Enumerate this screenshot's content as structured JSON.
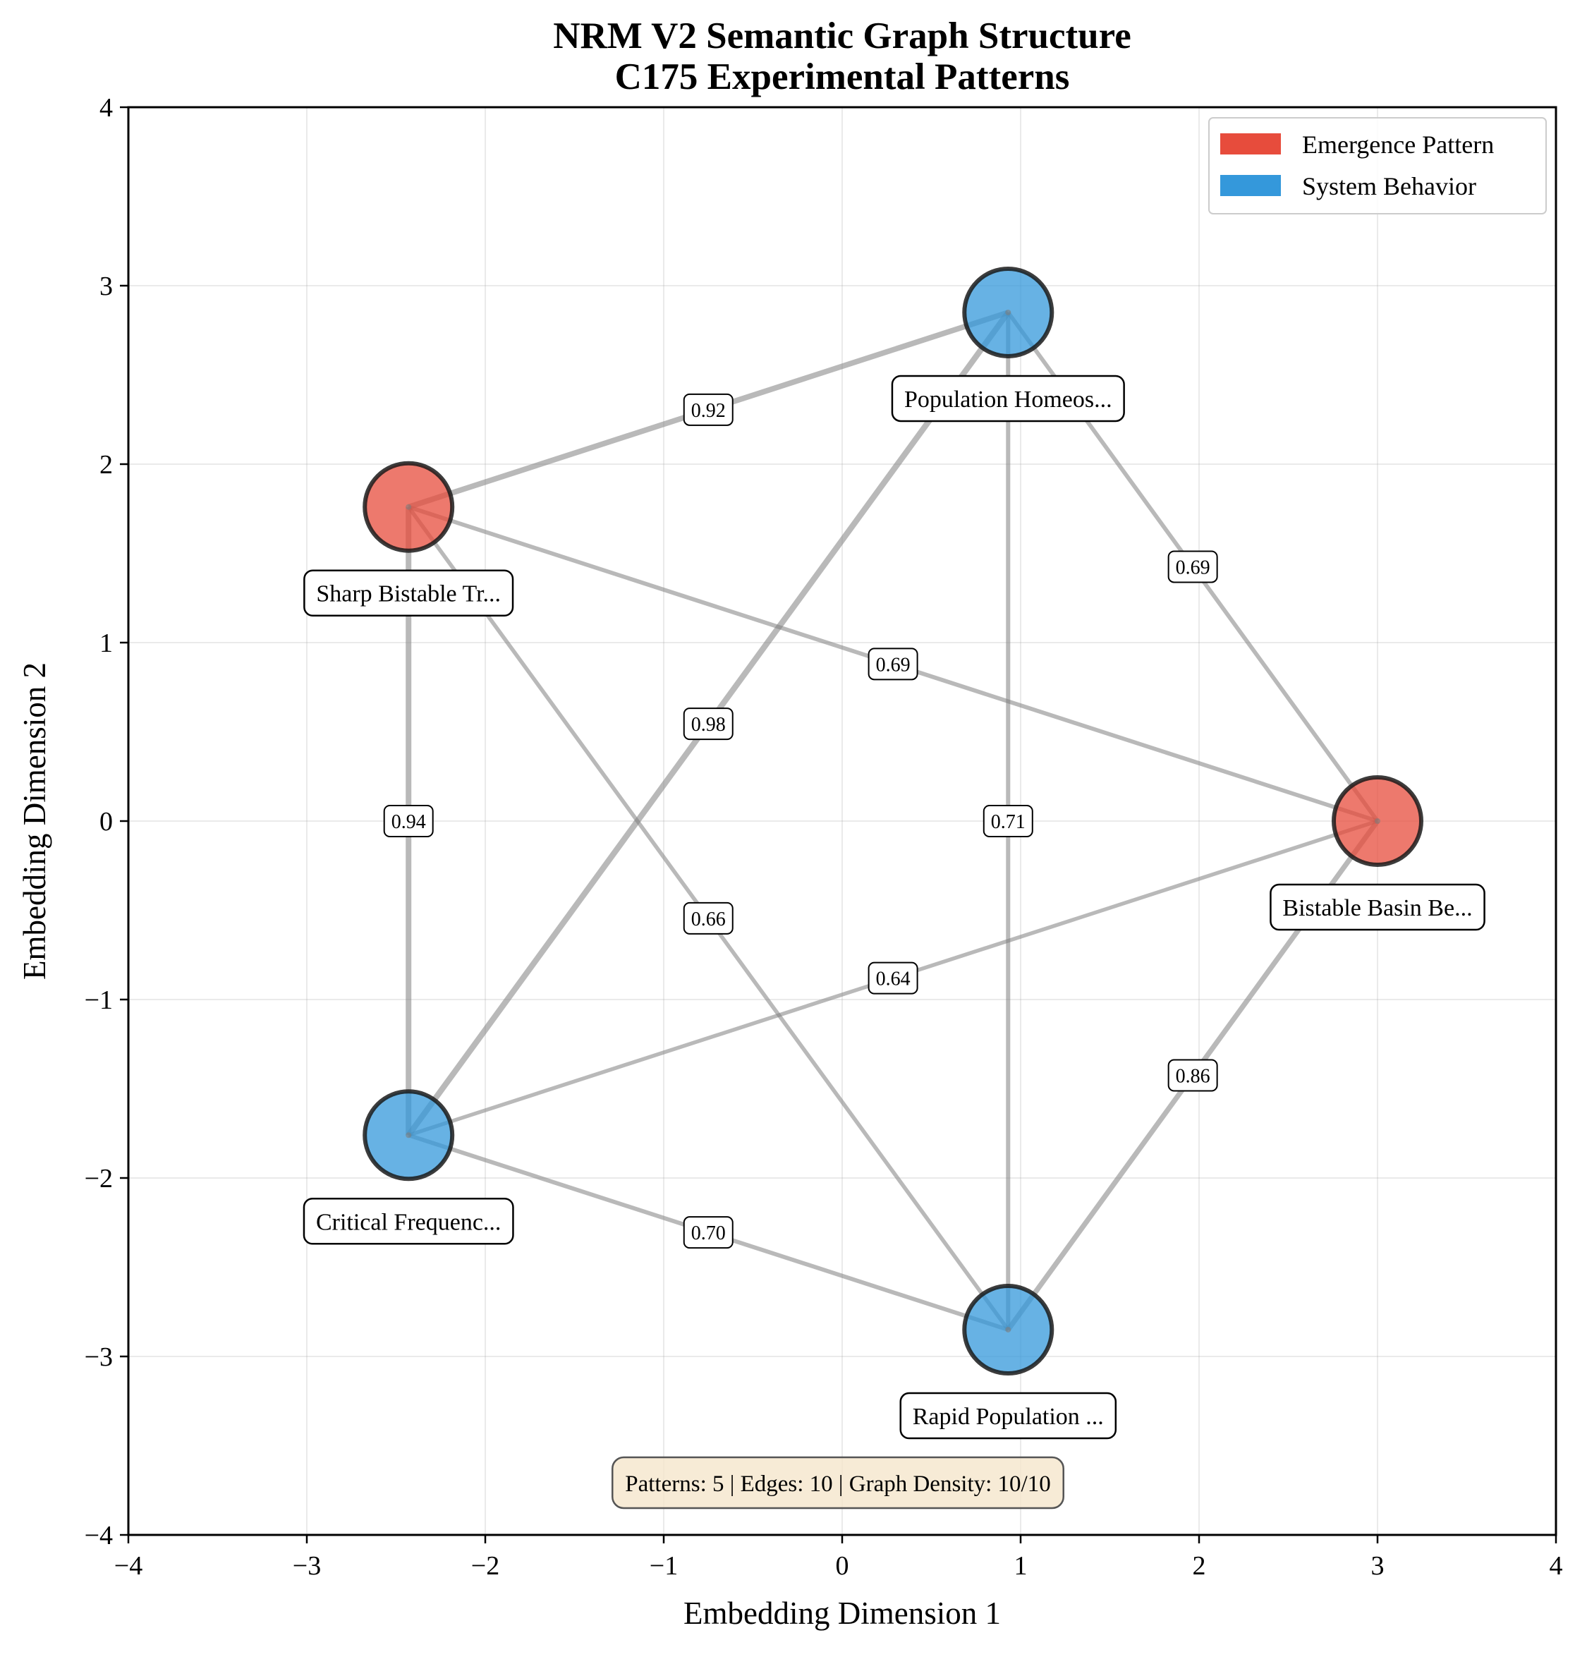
{
  "chart_data": {
    "type": "scatter",
    "title": [
      "NRM V2 Semantic Graph Structure",
      "C175 Experimental Patterns"
    ],
    "xlabel": "Embedding Dimension 1",
    "ylabel": "Embedding Dimension 2",
    "xlim": [
      -4,
      4
    ],
    "ylim": [
      -4,
      4
    ],
    "xticks": [
      -4,
      -3,
      -2,
      -1,
      0,
      1,
      2,
      3,
      4
    ],
    "yticks": [
      -4,
      -3,
      -2,
      -1,
      0,
      1,
      2,
      3,
      4
    ],
    "xtick_labels": [
      "−4",
      "−3",
      "−2",
      "−1",
      "0",
      "1",
      "2",
      "3",
      "4"
    ],
    "ytick_labels": [
      "−4",
      "−3",
      "−2",
      "−1",
      "0",
      "1",
      "2",
      "3",
      "4"
    ],
    "grid": true,
    "legend_position": "top-right",
    "legend": [
      {
        "label": "Emergence Pattern",
        "color": "#e74c3c"
      },
      {
        "label": "System Behavior",
        "color": "#3498db"
      }
    ],
    "nodes": [
      {
        "id": "n1",
        "label": "Sharp Bistable Tr...",
        "x": -2.43,
        "y": 1.76,
        "category": "Emergence Pattern"
      },
      {
        "id": "n2",
        "label": "Population Homeos...",
        "x": 0.93,
        "y": 2.85,
        "category": "System Behavior"
      },
      {
        "id": "n3",
        "label": "Bistable Basin Be...",
        "x": 3.0,
        "y": 0.0,
        "category": "Emergence Pattern"
      },
      {
        "id": "n4",
        "label": "Critical Frequenc...",
        "x": -2.43,
        "y": -1.76,
        "category": "System Behavior"
      },
      {
        "id": "n5",
        "label": "Rapid Population ...",
        "x": 0.93,
        "y": -2.85,
        "category": "System Behavior"
      }
    ],
    "edges": [
      {
        "source": "n1",
        "target": "n2",
        "weight": 0.92,
        "label": "0.92"
      },
      {
        "source": "n1",
        "target": "n3",
        "weight": 0.69,
        "label": "0.69"
      },
      {
        "source": "n1",
        "target": "n4",
        "weight": 0.94,
        "label": "0.94"
      },
      {
        "source": "n1",
        "target": "n5",
        "weight": 0.66,
        "label": "0.66"
      },
      {
        "source": "n2",
        "target": "n3",
        "weight": 0.69,
        "label": "0.69"
      },
      {
        "source": "n2",
        "target": "n4",
        "weight": 0.98,
        "label": "0.98"
      },
      {
        "source": "n2",
        "target": "n5",
        "weight": 0.71,
        "label": "0.71"
      },
      {
        "source": "n3",
        "target": "n4",
        "weight": 0.64,
        "label": "0.64"
      },
      {
        "source": "n3",
        "target": "n5",
        "weight": 0.86,
        "label": "0.86"
      },
      {
        "source": "n4",
        "target": "n5",
        "weight": 0.7,
        "label": "0.70"
      }
    ],
    "annotation": "Patterns: 5 | Edges: 10 | Graph Density: 10/10"
  }
}
